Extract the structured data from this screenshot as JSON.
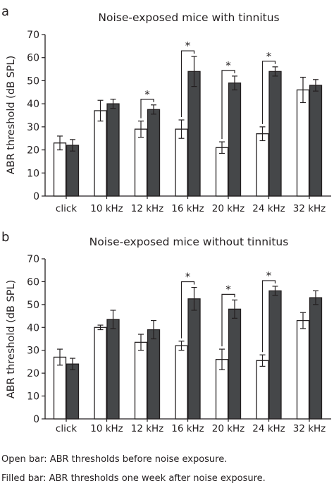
{
  "chart_data": [
    {
      "type": "bar",
      "panel_label": "a",
      "title": "Noise-exposed mice with tinnitus",
      "ylabel": "ABR threshold  (dB SPL)",
      "xlabel": "",
      "ylim": [
        0,
        70
      ],
      "yticks": [
        0,
        10,
        20,
        30,
        40,
        50,
        60,
        70
      ],
      "categories": [
        "click",
        "10 kHz",
        "12 kHz",
        "16 kHz",
        "20 kHz",
        "24 kHz",
        "32 kHz"
      ],
      "series": [
        {
          "style": "open",
          "values": [
            23,
            37,
            29,
            29,
            21,
            27,
            46
          ],
          "errors": [
            3,
            4.5,
            3.5,
            4,
            2.5,
            3,
            5.5
          ]
        },
        {
          "style": "filled",
          "values": [
            22,
            40,
            37.5,
            54,
            49,
            54,
            48
          ],
          "errors": [
            2.5,
            2,
            2,
            6.5,
            3,
            2,
            2.5
          ]
        }
      ],
      "significance": [
        {
          "category": "12 kHz",
          "label": "*"
        },
        {
          "category": "16 kHz",
          "label": "*"
        },
        {
          "category": "20 kHz",
          "label": "*"
        },
        {
          "category": "24 kHz",
          "label": "*"
        }
      ],
      "grid": false,
      "colors": {
        "open": "#ffffff",
        "filled": "#454749",
        "stroke": "#231f20"
      }
    },
    {
      "type": "bar",
      "panel_label": "b",
      "title": "Noise-exposed mice without tinnitus",
      "ylabel": "ABR threshold  (dB SPL)",
      "xlabel": "",
      "ylim": [
        0,
        70
      ],
      "yticks": [
        0,
        10,
        20,
        30,
        40,
        50,
        60,
        70
      ],
      "categories": [
        "click",
        "10 kHz",
        "12 kHz",
        "16 kHz",
        "20 kHz",
        "24 kHz",
        "32 kHz"
      ],
      "series": [
        {
          "style": "open",
          "values": [
            27,
            40,
            33.5,
            32,
            26,
            25.5,
            43
          ],
          "errors": [
            3.5,
            1,
            3.5,
            2,
            4.5,
            2.5,
            3.5
          ]
        },
        {
          "style": "filled",
          "values": [
            24,
            43.5,
            39,
            52.5,
            48,
            56,
            53
          ],
          "errors": [
            2.5,
            4,
            4,
            5,
            4,
            2,
            3
          ]
        }
      ],
      "significance": [
        {
          "category": "16 kHz",
          "label": "*"
        },
        {
          "category": "20 kHz",
          "label": "*"
        },
        {
          "category": "24 kHz",
          "label": "*"
        }
      ],
      "grid": false,
      "colors": {
        "open": "#ffffff",
        "filled": "#454749",
        "stroke": "#231f20"
      }
    }
  ],
  "captions": {
    "open_bar": "Open bar: ABR thresholds before noise exposure.",
    "filled_bar": "Filled bar: ABR thresholds one week after noise exposure."
  }
}
